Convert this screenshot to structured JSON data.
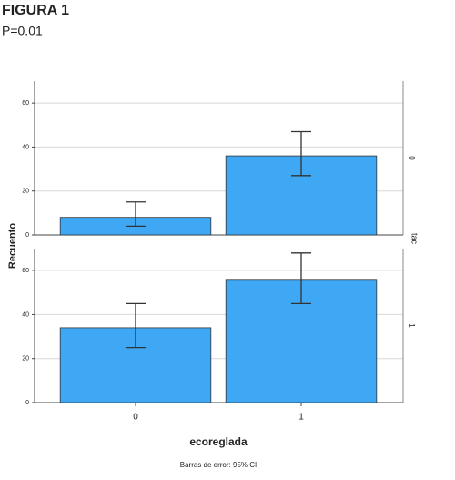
{
  "title": "FIGURA 1",
  "subtitle": "P=0.01",
  "y_label": "Recuento",
  "x_label": "ecoreglada",
  "facet_label": "tac",
  "footnote": "Barras de error: 95% CI",
  "chart_data": [
    {
      "type": "bar",
      "facet": "0",
      "categories": [
        "0",
        "1"
      ],
      "values": [
        8,
        36
      ],
      "error_low": [
        4,
        27
      ],
      "error_high": [
        15,
        47
      ],
      "color": "#3ea8f5",
      "ylim": [
        0,
        70
      ],
      "yticks": [
        0,
        20,
        40,
        60
      ],
      "grid": true
    },
    {
      "type": "bar",
      "facet": "1",
      "categories": [
        "0",
        "1"
      ],
      "values": [
        34,
        56
      ],
      "error_low": [
        25,
        45
      ],
      "error_high": [
        45,
        68
      ],
      "color": "#3ea8f5",
      "ylim": [
        0,
        70
      ],
      "yticks": [
        0,
        20,
        40,
        60
      ],
      "grid": true
    }
  ]
}
